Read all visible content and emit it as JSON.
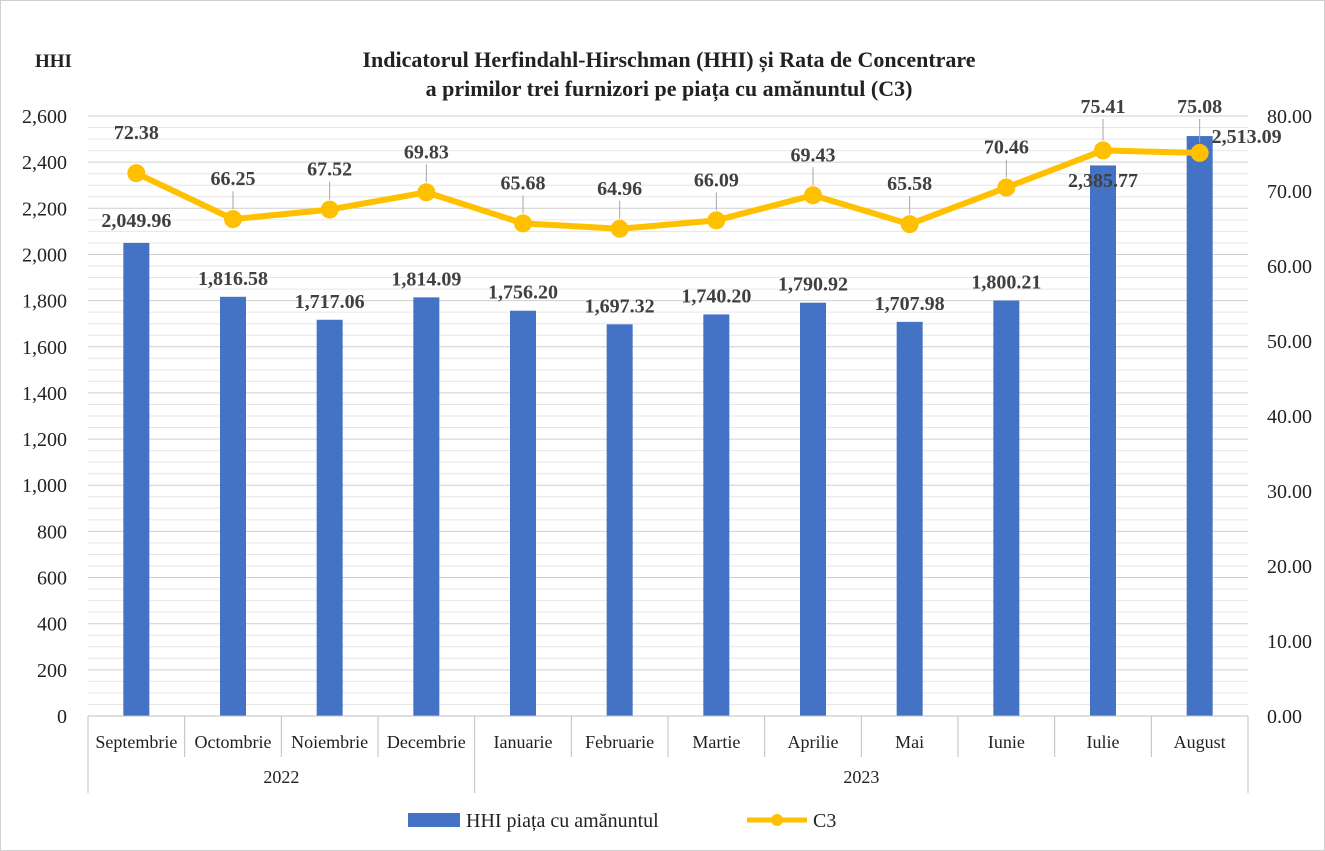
{
  "chart_data": {
    "type": "bar",
    "title_line1": "Indicatorul Herfindahl-Hirschman (HHI) și Rata de Concentrare",
    "title_line2": "a primilor trei furnizori pe piața cu amănuntul (C3)",
    "ylabel_left": "HHI",
    "categories": [
      "Septembrie",
      "Octombrie",
      "Noiembrie",
      "Decembrie",
      "Ianuarie",
      "Februarie",
      "Martie",
      "Aprilie",
      "Mai",
      "Iunie",
      "Iulie",
      "August"
    ],
    "year_groups": [
      {
        "label": "2022",
        "count": 4
      },
      {
        "label": "2023",
        "count": 8
      }
    ],
    "series": [
      {
        "name": "HHI piața cu amănuntul",
        "type": "bar",
        "axis": "left",
        "color": "#4472C4",
        "values": [
          2049.96,
          1816.58,
          1717.06,
          1814.09,
          1756.2,
          1697.32,
          1740.2,
          1790.92,
          1707.98,
          1800.21,
          2385.77,
          2513.09
        ],
        "labels": [
          "2,049.96",
          "1,816.58",
          "1,717.06",
          "1,814.09",
          "1,756.20",
          "1,697.32",
          "1,740.20",
          "1,790.92",
          "1,707.98",
          "1,800.21",
          "2,385.77",
          "2,513.09"
        ]
      },
      {
        "name": "C3",
        "type": "line",
        "axis": "right",
        "color": "#FFC000",
        "values": [
          72.38,
          66.25,
          67.52,
          69.83,
          65.68,
          64.96,
          66.09,
          69.43,
          65.58,
          70.46,
          75.41,
          75.08
        ],
        "labels": [
          "72.38",
          "66.25",
          "67.52",
          "69.83",
          "65.68",
          "64.96",
          "66.09",
          "69.43",
          "65.58",
          "70.46",
          "75.41",
          "75.08"
        ]
      }
    ],
    "left_axis": {
      "ylim": [
        0,
        2600
      ],
      "ticks": [
        0,
        200,
        400,
        600,
        800,
        1000,
        1200,
        1400,
        1600,
        1800,
        2000,
        2200,
        2400,
        2600
      ],
      "tick_labels": [
        "0",
        "200",
        "400",
        "600",
        "800",
        "1,000",
        "1,200",
        "1,400",
        "1,600",
        "1,800",
        "2,000",
        "2,200",
        "2,400",
        "2,600"
      ]
    },
    "right_axis": {
      "ylim": [
        0,
        80
      ],
      "ticks": [
        0,
        10,
        20,
        30,
        40,
        50,
        60,
        70,
        80
      ],
      "tick_labels": [
        "0.00",
        "10.00",
        "20.00",
        "30.00",
        "40.00",
        "50.00",
        "60.00",
        "70.00",
        "80.00"
      ]
    },
    "grid": true,
    "legend_position": "bottom"
  }
}
